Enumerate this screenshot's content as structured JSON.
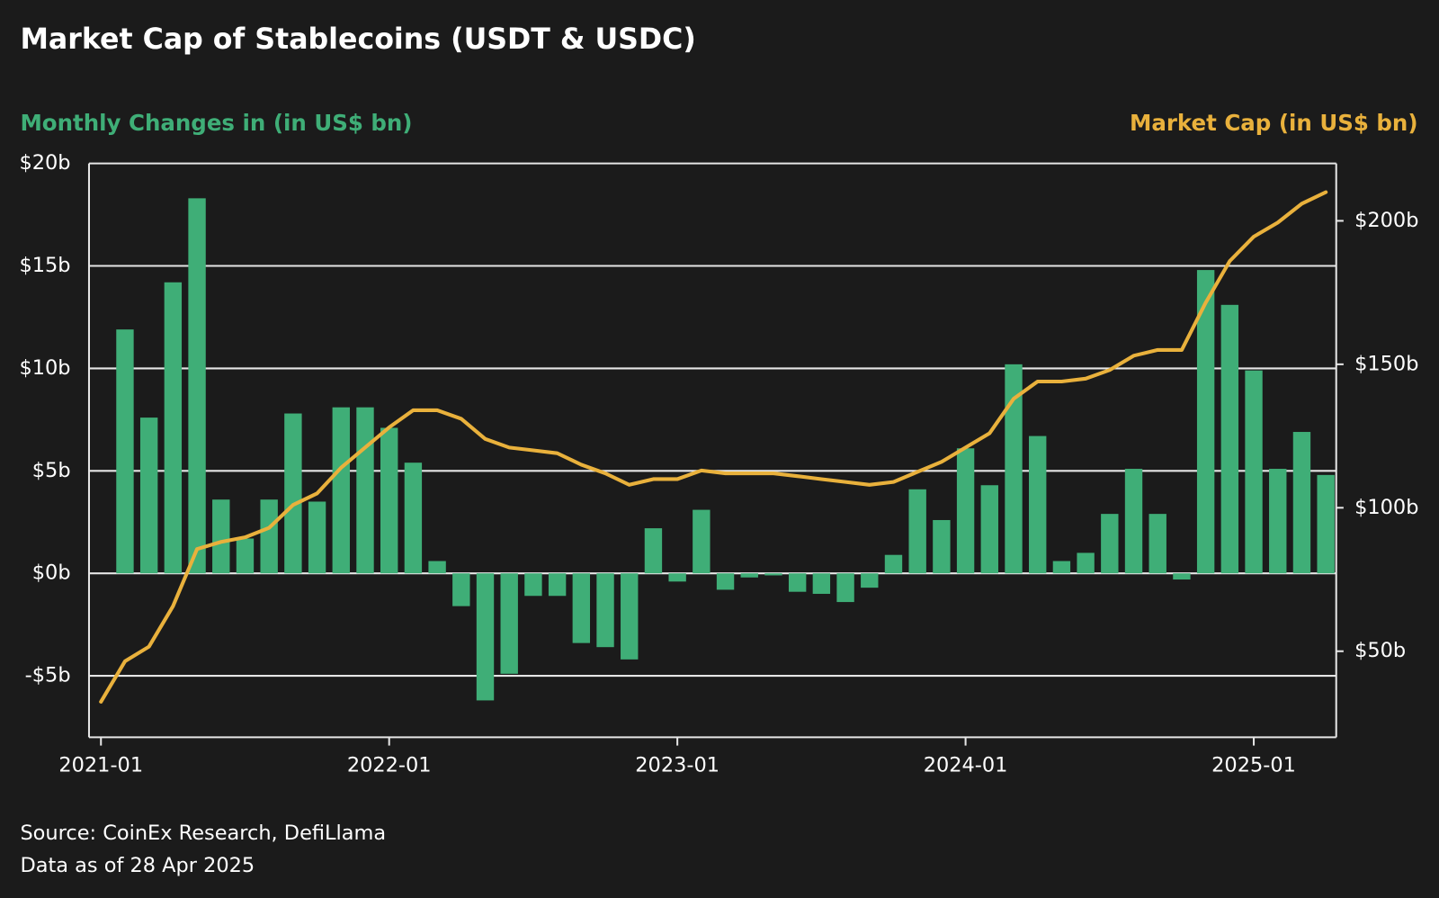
{
  "chart_data": {
    "type": "bar_line",
    "title": "Market Cap of Stablecoins (USDT & USDC)",
    "y_label": "Monthly Changes in (in US$ bn)",
    "y2_label": "Market Cap (in US$ bn)",
    "source": "Source: CoinEx Research, DefiLlama",
    "note": "Data as of 28 Apr 2025",
    "x": [
      "2021-01",
      "2021-02",
      "2021-03",
      "2021-04",
      "2021-05",
      "2021-06",
      "2021-07",
      "2021-08",
      "2021-09",
      "2021-10",
      "2021-11",
      "2021-12",
      "2022-01",
      "2022-02",
      "2022-03",
      "2022-04",
      "2022-05",
      "2022-06",
      "2022-07",
      "2022-08",
      "2022-09",
      "2022-10",
      "2022-11",
      "2022-12",
      "2023-01",
      "2023-02",
      "2023-03",
      "2023-04",
      "2023-05",
      "2023-06",
      "2023-07",
      "2023-08",
      "2023-09",
      "2023-10",
      "2023-11",
      "2023-12",
      "2024-01",
      "2024-02",
      "2024-03",
      "2024-04",
      "2024-05",
      "2024-06",
      "2024-07",
      "2024-08",
      "2024-09",
      "2024-10",
      "2024-11",
      "2024-12",
      "2025-01",
      "2025-02",
      "2025-03",
      "2025-04"
    ],
    "xticks": [
      "2021-01",
      "2022-01",
      "2023-01",
      "2024-01",
      "2025-01"
    ],
    "series": [
      {
        "name": "Monthly Changes",
        "type": "bar",
        "color": "#3fae77",
        "values": [
          null,
          11.9,
          7.6,
          14.2,
          18.3,
          3.6,
          1.7,
          3.6,
          7.8,
          3.5,
          8.1,
          8.1,
          7.1,
          5.4,
          0.6,
          -1.6,
          -6.2,
          -4.9,
          -1.1,
          -1.1,
          -3.4,
          -3.6,
          -4.2,
          2.2,
          -0.4,
          3.1,
          -0.8,
          -0.2,
          -0.1,
          -0.9,
          -1.0,
          -1.4,
          -0.7,
          0.9,
          4.1,
          2.6,
          6.1,
          4.3,
          10.2,
          6.7,
          0.6,
          1.0,
          2.9,
          5.1,
          2.9,
          -0.3,
          14.8,
          13.1,
          9.9,
          5.1,
          6.9,
          4.8
        ]
      },
      {
        "name": "Market Cap",
        "type": "line",
        "axis": "y2",
        "color": "#e9b13c",
        "values": [
          32.4,
          46.5,
          51.6,
          65.7,
          85.6,
          88.1,
          89.7,
          93,
          101,
          105,
          114,
          121,
          128,
          134,
          134,
          131,
          124,
          121,
          120,
          119,
          115,
          112,
          108,
          110,
          110,
          113,
          112,
          112,
          112,
          111,
          110,
          109,
          108,
          109,
          112.5,
          116,
          121,
          126,
          138,
          144,
          144,
          145,
          148,
          153,
          155,
          155,
          171.5,
          186,
          194.5,
          199.4,
          206,
          210
        ]
      }
    ],
    "ylim": [
      -8,
      20
    ],
    "yticks": [
      {
        "value": -5,
        "label": "-$5b"
      },
      {
        "value": 0,
        "label": "$0b"
      },
      {
        "value": 5,
        "label": "$5b"
      },
      {
        "value": 10,
        "label": "$10b"
      },
      {
        "value": 15,
        "label": "$15b"
      },
      {
        "value": 20,
        "label": "$20b"
      }
    ],
    "y2lim": [
      20,
      220
    ],
    "y2ticks": [
      {
        "value": 50,
        "label": "$50b"
      },
      {
        "value": 100,
        "label": "$100b"
      },
      {
        "value": 150,
        "label": "$150b"
      },
      {
        "value": 200,
        "label": "$200b"
      }
    ],
    "grid": true
  }
}
